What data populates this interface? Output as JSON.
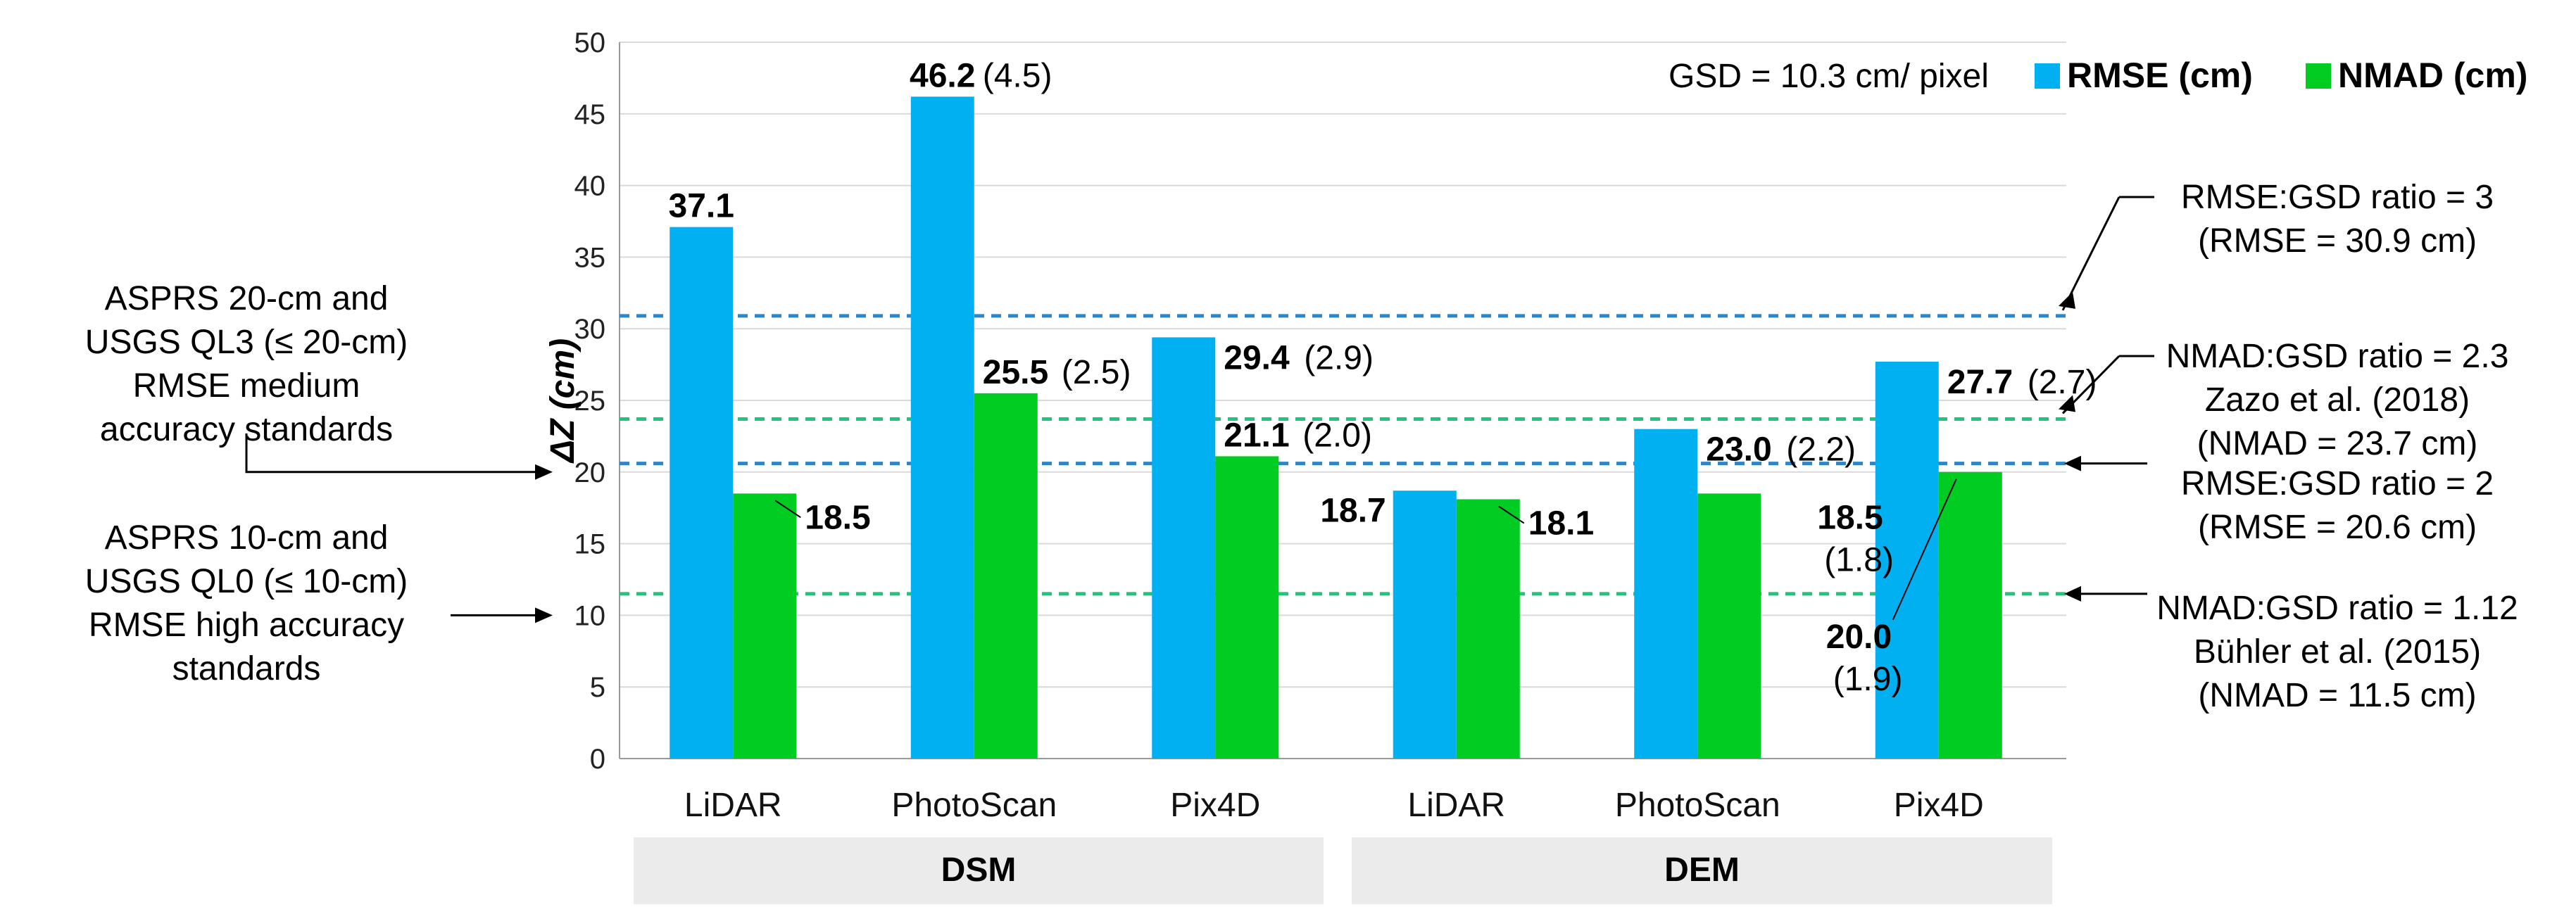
{
  "chart_data": {
    "type": "bar",
    "ylabel": "ΔZ (cm)",
    "ylim": [
      0,
      50
    ],
    "yticks": [
      0,
      5,
      10,
      15,
      20,
      25,
      30,
      35,
      40,
      45,
      50
    ],
    "categories": [
      "LiDAR",
      "PhotoScan",
      "Pix4D",
      "LiDAR",
      "PhotoScan",
      "Pix4D"
    ],
    "groups": [
      "DSM",
      "DEM"
    ],
    "series": [
      {
        "name": "RMSE (cm)",
        "color": "#00B0F0",
        "values": [
          37.1,
          46.2,
          29.4,
          18.7,
          23.0,
          27.7
        ],
        "labels": [
          "37.1",
          "46.2",
          "29.4",
          "18.7",
          "23.0",
          "27.7"
        ],
        "sub_labels": [
          "",
          "(4.5)",
          "(2.9)",
          "",
          "(2.2)",
          "(2.7)"
        ]
      },
      {
        "name": "NMAD (cm)",
        "color": "#00CC22",
        "values": [
          18.5,
          25.5,
          21.1,
          18.1,
          18.5,
          20.0
        ],
        "labels": [
          "18.5",
          "25.5",
          "21.1",
          "18.1",
          "18.5",
          "20.0"
        ],
        "sub_labels": [
          "",
          "(2.5)",
          "(2.0)",
          "",
          "(1.8)",
          "(1.9)"
        ]
      }
    ],
    "reference_lines": [
      {
        "value": 30.9,
        "color": "#2E86C8",
        "text": [
          "RMSE:GSD ratio = 3",
          "(RMSE = 30.9 cm)"
        ]
      },
      {
        "value": 23.7,
        "color": "#22C47A",
        "text": [
          "NMAD:GSD ratio = 2.3",
          "Zazo et al. (2018)",
          "(NMAD = 23.7 cm)"
        ]
      },
      {
        "value": 20.6,
        "color": "#2E86C8",
        "text": [
          "RMSE:GSD  ratio = 2",
          "(RMSE = 20.6 cm)"
        ]
      },
      {
        "value": 11.5,
        "color": "#22C47A",
        "text": [
          "NMAD:GSD ratio = 1.12",
          "Bühler   et al. (2015)",
          "(NMAD = 11.5 cm)"
        ]
      }
    ],
    "left_annotations": [
      {
        "value": 20,
        "text": [
          "ASPRS 20-cm and",
          "USGS QL3 (≤  20-cm)",
          "RMSE medium",
          "accuracy standards"
        ]
      },
      {
        "value": 10,
        "text": [
          "ASPRS 10-cm and",
          "USGS QL0  (≤  10-cm)",
          "RMSE high accuracy",
          "standards"
        ]
      }
    ],
    "gsd_note": "GSD = 10.3 cm/ pixel"
  }
}
